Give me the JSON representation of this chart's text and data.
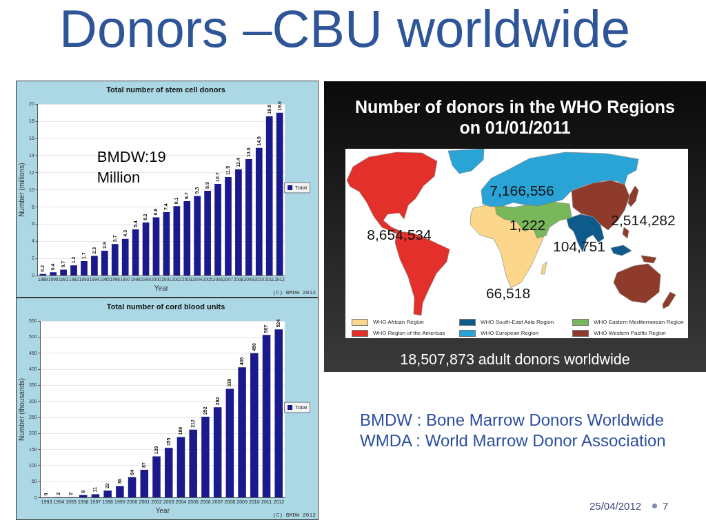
{
  "chart_data": [
    {
      "type": "other",
      "title": "Donors –CBU worldwide",
      "annotations": [
        "BMDW : Bone Marrow Donors Worldwide",
        "WMDA : World Marrow Donor Association",
        "25/04/2012",
        "7"
      ]
    },
    {
      "type": "bar",
      "title": "Total number of stem cell donors",
      "xlabel": "Year",
      "ylabel": "Number (millions)",
      "categories": [
        "1989",
        "1990",
        "1991",
        "1992",
        "1993",
        "1994",
        "1995",
        "1996",
        "1997",
        "1998",
        "1999",
        "2000",
        "2001",
        "2002",
        "2003",
        "2004",
        "2005",
        "2006",
        "2007",
        "2008",
        "2009",
        "2010",
        "2011",
        "2012"
      ],
      "series": [
        {
          "name": "Total",
          "color": "#1a1a8c",
          "values": [
            0.2,
            0.4,
            0.7,
            1.2,
            1.7,
            2.3,
            2.9,
            3.7,
            4.3,
            5.4,
            6.2,
            6.8,
            7.4,
            8.1,
            8.7,
            9.3,
            9.9,
            10.7,
            11.5,
            12.4,
            13.6,
            14.9,
            18.6,
            19.0
          ],
          "value_labels": [
            "0.2",
            "0.4",
            "0.7",
            "1.2",
            "1.7",
            "2.3",
            "2.9",
            "3.7",
            "4.3",
            "5.4",
            "6.2",
            "6.8",
            "7.4",
            "8.1",
            "8.7",
            "9.3",
            "9.9",
            "10.7",
            "11.5",
            "12.4",
            "13.6",
            "14.9",
            "18.6",
            "19.0"
          ]
        }
      ],
      "ylim": [
        0,
        20
      ],
      "yticks": [
        0,
        2,
        4,
        6,
        8,
        10,
        12,
        14,
        16,
        18,
        20
      ],
      "grid": "y",
      "legend": "right",
      "annotations": [
        "BMDW:19 Million",
        "(C) BMDW 2012"
      ]
    },
    {
      "type": "bar",
      "title": "Total number of cord blood units",
      "xlabel": "Year",
      "ylabel": "Number (thousands)",
      "categories": [
        "1993",
        "1994",
        "1995",
        "1996",
        "1997",
        "1998",
        "1999",
        "2000",
        "2001",
        "2002",
        "2003",
        "2004",
        "2005",
        "2006",
        "2007",
        "2008",
        "2009",
        "2010",
        "2011",
        "2012"
      ],
      "series": [
        {
          "name": "Total",
          "color": "#1a1a8c",
          "values": [
            0,
            2,
            2,
            8,
            11,
            22,
            36,
            64,
            87,
            129,
            155,
            189,
            212,
            252,
            282,
            339,
            406,
            450,
            507,
            524
          ]
        }
      ],
      "ylim": [
        0,
        550
      ],
      "yticks": [
        0,
        50,
        100,
        150,
        200,
        250,
        300,
        350,
        400,
        450,
        500,
        550
      ],
      "grid": "y",
      "legend": "right",
      "data_labels": true,
      "annotations": [
        "(C) BMDW 2012"
      ]
    },
    {
      "type": "other",
      "title": "Number of donors in the WHO Regions on 01/01/2011",
      "categories": [
        "WHO African Region",
        "WHO South-East Asia Region",
        "WHO Eastern Mediterranean Region",
        "WHO Region of the Americas",
        "WHO European Region",
        "WHO Western Pacific Region"
      ],
      "value_labels": [
        "66,518",
        "104,751",
        "1,222",
        "8,654,534",
        "7,166,556",
        "2,514,282"
      ],
      "colors": [
        "#fcd68a",
        "#0e5a8a",
        "#79b75b",
        "#e3302a",
        "#2aa3d6",
        "#8f3b2b"
      ],
      "annotations": [
        "18,507,873 adult donors worldwide"
      ]
    }
  ]
}
